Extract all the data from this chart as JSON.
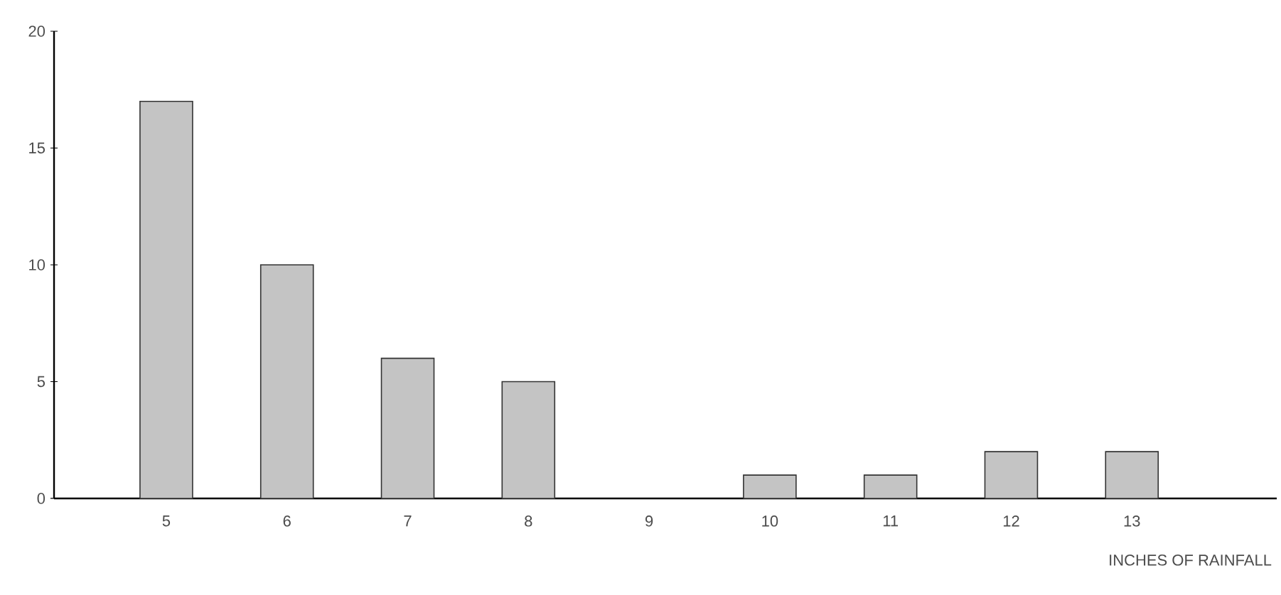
{
  "chart_data": {
    "type": "bar",
    "xlabel": "INCHES OF RAINFALL",
    "categories": [
      "5",
      "6",
      "7",
      "8",
      "9",
      "10",
      "11",
      "12",
      "13"
    ],
    "values": [
      17,
      10,
      6,
      5,
      0,
      1,
      1,
      2,
      2
    ],
    "color": "#c4c4c4",
    "ylim": [
      0,
      20
    ],
    "yticks": [
      0,
      5,
      10,
      15,
      20
    ]
  }
}
